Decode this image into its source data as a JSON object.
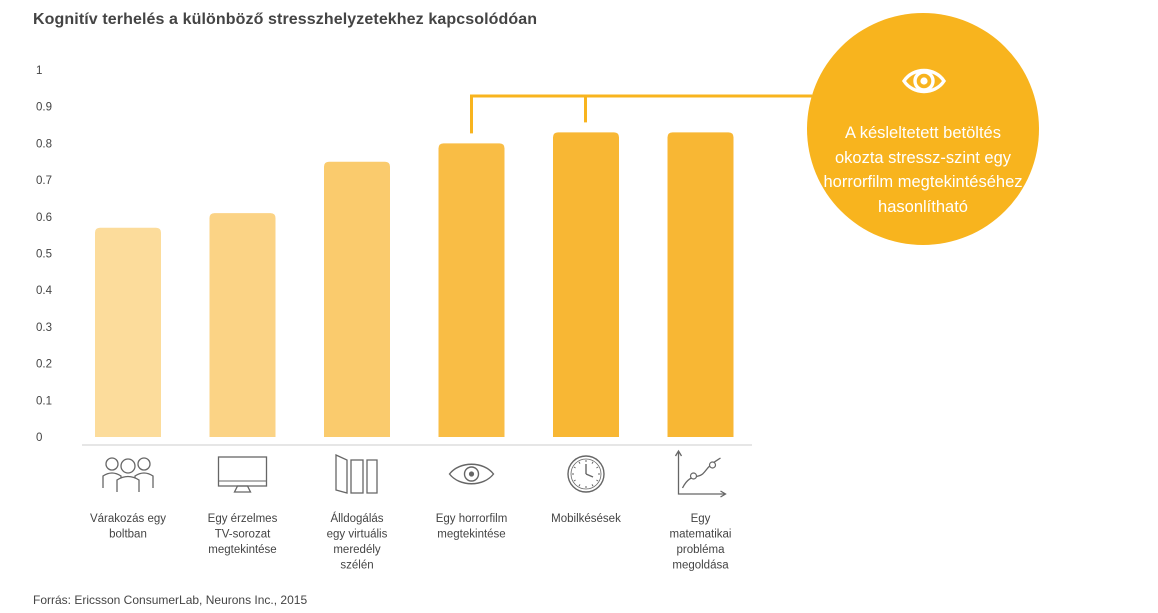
{
  "chart_data": {
    "type": "bar",
    "title": "Kognitív terhelés a különböző stresszhelyzetekhez kapcsolódóan",
    "ylim": [
      0,
      1
    ],
    "yticks": [
      "0",
      "0.1",
      "0.2",
      "0.3",
      "0.4",
      "0.5",
      "0.6",
      "0.7",
      "0.8",
      "0.9",
      "1"
    ],
    "grid": false,
    "categories": [
      [
        "Várakozás egy",
        "boltban"
      ],
      [
        "Egy érzelmes",
        "TV-sorozat",
        "megtekintése"
      ],
      [
        "Álldogálás",
        "egy virtuális",
        "meredély",
        "szélén"
      ],
      [
        "Egy horrorfilm",
        "megtekintése"
      ],
      [
        "Mobilkésések"
      ],
      [
        "Egy",
        "matematikai",
        "probléma",
        "megoldása"
      ]
    ],
    "category_icons": [
      "people-icon",
      "tv-icon",
      "panels-icon",
      "eye-icon",
      "clock-icon",
      "graph-icon"
    ],
    "values": [
      0.57,
      0.61,
      0.75,
      0.8,
      0.83,
      0.83
    ],
    "bar_colors": [
      "#FCDC9B",
      "#FBD385",
      "#FACB6D",
      "#F9BD45",
      "#F8B734",
      "#F8B734"
    ],
    "annotation": {
      "text": "A késleltetett betöltés okozta stressz-szint egy horrorfilm megtekintéséhez hasonlítható",
      "color": "#F8B41E",
      "icon": "eye-icon"
    },
    "source": "Forrás: Ericsson ConsumerLab, Neurons Inc., 2015"
  }
}
